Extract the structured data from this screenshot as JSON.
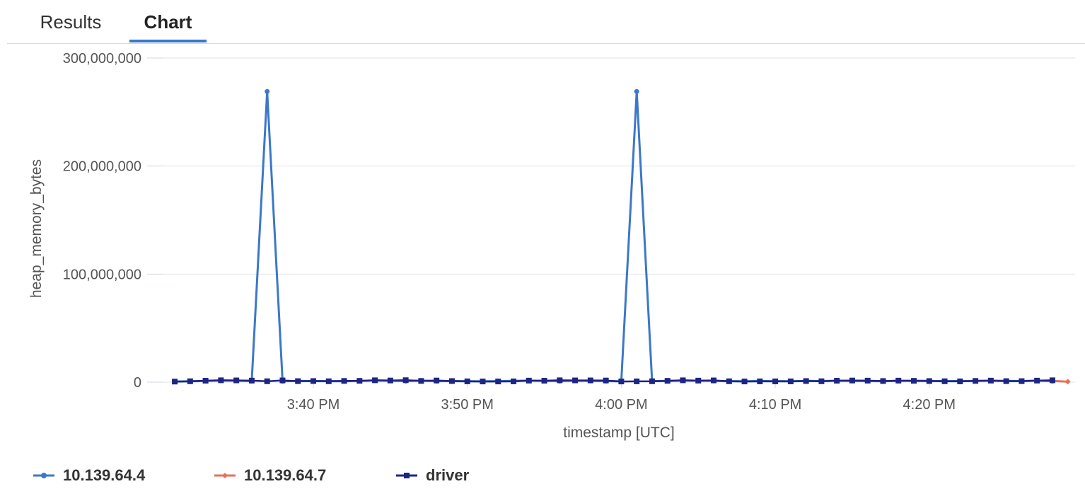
{
  "tabs": [
    {
      "label": "Results"
    },
    {
      "label": "Chart"
    }
  ],
  "active_tab": "Chart",
  "chart_data": {
    "type": "line",
    "title": "",
    "xlabel": "timestamp [UTC]",
    "ylabel": "heap_memory_bytes",
    "ylim": [
      0,
      300000000
    ],
    "yticks": [
      0,
      100000000,
      200000000,
      300000000
    ],
    "ytick_labels": [
      "0",
      "100,000,000",
      "200,000,000",
      "300,000,000"
    ],
    "xlim": [
      "15:31",
      "16:29"
    ],
    "xticks": [
      "15:40",
      "15:50",
      "16:00",
      "16:10",
      "16:20"
    ],
    "xtick_labels": [
      "3:40 PM",
      "3:50 PM",
      "4:00 PM",
      "4:10 PM",
      "4:20 PM"
    ],
    "legend_position": "bottom-left",
    "series": [
      {
        "name": "10.139.64.4",
        "color": "#3b78c9",
        "marker": "circle",
        "x": [
          "15:31",
          "15:32",
          "15:33",
          "15:34",
          "15:35",
          "15:36",
          "15:37",
          "15:38",
          "15:39",
          "15:40",
          "15:41",
          "15:42",
          "15:43",
          "15:44",
          "15:45",
          "15:46",
          "15:47",
          "15:48",
          "15:49",
          "15:50",
          "15:51",
          "15:52",
          "15:53",
          "15:54",
          "15:55",
          "15:56",
          "15:57",
          "15:58",
          "15:59",
          "16:00",
          "16:01",
          "16:02",
          "16:03",
          "16:04",
          "16:05",
          "16:06",
          "16:07",
          "16:08",
          "16:09",
          "16:10",
          "16:11",
          "16:12",
          "16:13",
          "16:14",
          "16:15",
          "16:16",
          "16:17",
          "16:18",
          "16:19",
          "16:20",
          "16:21",
          "16:22",
          "16:23",
          "16:24",
          "16:25",
          "16:26",
          "16:27",
          "16:28"
        ],
        "values": [
          500000,
          700000,
          1200000,
          1500000,
          1300000,
          1000000,
          269000000,
          800000,
          1200000,
          1000000,
          900000,
          800000,
          1100000,
          1500000,
          1300000,
          1000000,
          1400000,
          900000,
          1000000,
          800000,
          700000,
          900000,
          1100000,
          1400000,
          1200000,
          1000000,
          1300000,
          1100000,
          1000000,
          700000,
          269000000,
          900000,
          1200000,
          1400000,
          1300000,
          1100000,
          900000,
          800000,
          1000000,
          900000,
          800000,
          1200000,
          1000000,
          1300000,
          1100000,
          1000000,
          900000,
          1100000,
          1300000,
          1200000,
          900000,
          1000000,
          1100000,
          1300000,
          1200000,
          1000000,
          1400000,
          900000
        ]
      },
      {
        "name": "10.139.64.7",
        "color": "#e4725a",
        "marker": "diamond",
        "x": [
          "16:28",
          "16:29"
        ],
        "values": [
          1100000,
          400000
        ]
      },
      {
        "name": "driver",
        "color": "#1c2585",
        "marker": "square",
        "x": [
          "15:31",
          "15:32",
          "15:33",
          "15:34",
          "15:35",
          "15:36",
          "15:37",
          "15:38",
          "15:39",
          "15:40",
          "15:41",
          "15:42",
          "15:43",
          "15:44",
          "15:45",
          "15:46",
          "15:47",
          "15:48",
          "15:49",
          "15:50",
          "15:51",
          "15:52",
          "15:53",
          "15:54",
          "15:55",
          "15:56",
          "15:57",
          "15:58",
          "15:59",
          "16:00",
          "16:01",
          "16:02",
          "16:03",
          "16:04",
          "16:05",
          "16:06",
          "16:07",
          "16:08",
          "16:09",
          "16:10",
          "16:11",
          "16:12",
          "16:13",
          "16:14",
          "16:15",
          "16:16",
          "16:17",
          "16:18",
          "16:19",
          "16:20",
          "16:21",
          "16:22",
          "16:23",
          "16:24",
          "16:25",
          "16:26",
          "16:27",
          "16:28"
        ],
        "values": [
          500000,
          800000,
          1300000,
          1700000,
          1600000,
          1400000,
          800000,
          1600000,
          900000,
          1000000,
          800000,
          1100000,
          1200000,
          1700000,
          1500000,
          1800000,
          1100000,
          1500000,
          1000000,
          700000,
          600000,
          600000,
          700000,
          1400000,
          1300000,
          1700000,
          1600000,
          1600000,
          1500000,
          600000,
          700000,
          800000,
          1200000,
          1700000,
          1400000,
          1600000,
          800000,
          600000,
          700000,
          700000,
          700000,
          1000000,
          800000,
          1300000,
          1500000,
          1400000,
          1000000,
          1400000,
          1200000,
          1000000,
          800000,
          700000,
          1100000,
          1400000,
          900000,
          900000,
          1400000,
          1700000
        ]
      }
    ]
  }
}
